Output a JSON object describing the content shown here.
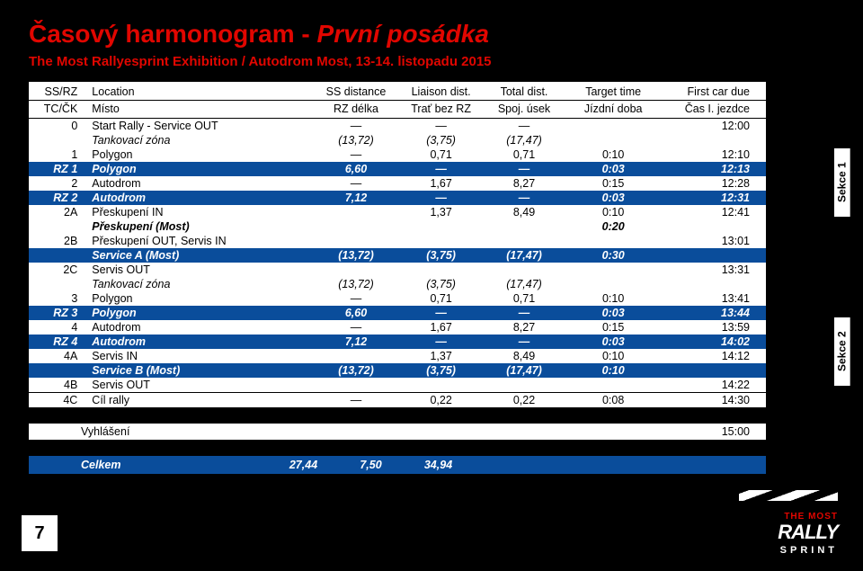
{
  "title_prefix": "Časový harmonogram - ",
  "title_italic": "První posádka",
  "subtitle": "The Most Rallyesprint Exhibition / Autodrom Most, 13-14. listopadu 2015",
  "head1": {
    "c1": "SS/RZ",
    "c2": "Location",
    "c3": "SS distance",
    "c4": "Liaison dist.",
    "c5": "Total dist.",
    "c6": "Target time",
    "c7": "First car due"
  },
  "head2": {
    "c1": "TC/ČK",
    "c2": "Místo",
    "c3": "RZ délka",
    "c4": "Trať bez RZ",
    "c5": "Spoj. úsek",
    "c6": "Jízdní doba",
    "c7": "Čas I. jezdce"
  },
  "rows": [
    {
      "cls": "white",
      "id": "0",
      "loc": "Start Rally - Service OUT",
      "ss": "—",
      "li": "—",
      "tot": "—",
      "tgt": "",
      "due": "12:00"
    },
    {
      "cls": "zone",
      "id": "",
      "loc": "Tankovací zóna",
      "ss": "(13,72)",
      "li": "(3,75)",
      "tot": "(17,47)",
      "tgt": "",
      "due": ""
    },
    {
      "cls": "white",
      "id": "1",
      "loc": "Polygon",
      "ss": "—",
      "li": "0,71",
      "tot": "0,71",
      "tgt": "0:10",
      "due": "12:10"
    },
    {
      "cls": "blue",
      "id": "RZ 1",
      "loc": "Polygon",
      "ss": "6,60",
      "li": "—",
      "tot": "—",
      "tgt": "0:03",
      "due": "12:13"
    },
    {
      "cls": "white",
      "id": "2",
      "loc": "Autodrom",
      "ss": "—",
      "li": "1,67",
      "tot": "8,27",
      "tgt": "0:15",
      "due": "12:28"
    },
    {
      "cls": "blue",
      "id": "RZ 2",
      "loc": "Autodrom",
      "ss": "7,12",
      "li": "—",
      "tot": "—",
      "tgt": "0:03",
      "due": "12:31"
    },
    {
      "cls": "white",
      "id": "2A",
      "loc": "Přeskupení IN",
      "ss": "",
      "li": "1,37",
      "tot": "8,49",
      "tgt": "0:10",
      "due": "12:41"
    },
    {
      "cls": "white bold-italic",
      "id": "",
      "loc": "Přeskupení (Most)",
      "ss": "",
      "li": "",
      "tot": "",
      "tgt": "0:20",
      "due": ""
    },
    {
      "cls": "white",
      "id": "2B",
      "loc": "Přeskupení OUT, Servis IN",
      "ss": "",
      "li": "",
      "tot": "",
      "tgt": "",
      "due": "13:01"
    },
    {
      "cls": "blue",
      "id": "",
      "loc": "Service A (Most)",
      "ss": "(13,72)",
      "li": "(3,75)",
      "tot": "(17,47)",
      "tgt": "0:30",
      "due": ""
    },
    {
      "cls": "white",
      "id": "2C",
      "loc": "Servis OUT",
      "ss": "",
      "li": "",
      "tot": "",
      "tgt": "",
      "due": "13:31"
    },
    {
      "cls": "zone",
      "id": "",
      "loc": "Tankovací zóna",
      "ss": "(13,72)",
      "li": "(3,75)",
      "tot": "(17,47)",
      "tgt": "",
      "due": ""
    },
    {
      "cls": "white",
      "id": "3",
      "loc": "Polygon",
      "ss": "—",
      "li": "0,71",
      "tot": "0,71",
      "tgt": "0:10",
      "due": "13:41"
    },
    {
      "cls": "blue",
      "id": "RZ 3",
      "loc": "Polygon",
      "ss": "6,60",
      "li": "—",
      "tot": "—",
      "tgt": "0:03",
      "due": "13:44"
    },
    {
      "cls": "white",
      "id": "4",
      "loc": "Autodrom",
      "ss": "—",
      "li": "1,67",
      "tot": "8,27",
      "tgt": "0:15",
      "due": "13:59"
    },
    {
      "cls": "blue",
      "id": "RZ 4",
      "loc": "Autodrom",
      "ss": "7,12",
      "li": "—",
      "tot": "—",
      "tgt": "0:03",
      "due": "14:02"
    },
    {
      "cls": "white",
      "id": "4A",
      "loc": "Servis IN",
      "ss": "",
      "li": "1,37",
      "tot": "8,49",
      "tgt": "0:10",
      "due": "14:12"
    },
    {
      "cls": "blue",
      "id": "",
      "loc": "Service B (Most)",
      "ss": "(13,72)",
      "li": "(3,75)",
      "tot": "(17,47)",
      "tgt": "0:10",
      "due": ""
    },
    {
      "cls": "white",
      "id": "4B",
      "loc": "Servis OUT",
      "ss": "",
      "li": "",
      "tot": "",
      "tgt": "",
      "due": "14:22"
    },
    {
      "cls": "white top-border",
      "id": "4C",
      "loc": "Cíl rally",
      "ss": "—",
      "li": "0,22",
      "tot": "0,22",
      "tgt": "0:08",
      "due": "14:30"
    }
  ],
  "sekce1": "Sekce 1",
  "sekce2": "Sekce 2",
  "announce_label": "Vyhlášení",
  "announce_time": "15:00",
  "total_label": "Celkem",
  "total_ss": "27,44",
  "total_li": "7,50",
  "total_tot": "34,94",
  "page_number": "7",
  "logo_themost": "THE MOST",
  "logo_rally": "RALLY",
  "logo_sprint": "SPRINT"
}
